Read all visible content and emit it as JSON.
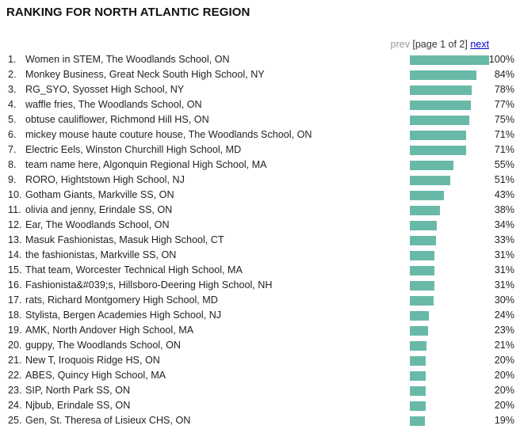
{
  "title": "RANKING FOR NORTH ATLANTIC REGION",
  "pager": {
    "prev": "prev",
    "info": "[page 1 of 2]",
    "next": "next"
  },
  "bar_color": "#69b9a9",
  "rankings": [
    {
      "rank": "1.",
      "name": "Women in STEM, The Woodlands School, ON",
      "pct": "100%",
      "value": 100
    },
    {
      "rank": "2.",
      "name": "Monkey Business, Great Neck South High School, NY",
      "pct": "84%",
      "value": 84
    },
    {
      "rank": "3.",
      "name": "RG_SYO, Syosset High School, NY",
      "pct": "78%",
      "value": 78
    },
    {
      "rank": "4.",
      "name": "waffle fries, The Woodlands School, ON",
      "pct": "77%",
      "value": 77
    },
    {
      "rank": "5.",
      "name": "obtuse cauliflower, Richmond Hill HS, ON",
      "pct": "75%",
      "value": 75
    },
    {
      "rank": "6.",
      "name": "mickey mouse haute couture house, The Woodlands School, ON",
      "pct": "71%",
      "value": 71
    },
    {
      "rank": "7.",
      "name": "Electric Eels, Winston Churchill High School, MD",
      "pct": "71%",
      "value": 71
    },
    {
      "rank": "8.",
      "name": "team name here, Algonquin Regional High School, MA",
      "pct": "55%",
      "value": 55
    },
    {
      "rank": "9.",
      "name": "RORO, Hightstown High School, NJ",
      "pct": "51%",
      "value": 51
    },
    {
      "rank": "10.",
      "name": "Gotham Giants, Markville SS, ON",
      "pct": "43%",
      "value": 43
    },
    {
      "rank": "11.",
      "name": "olivia and jenny, Erindale SS, ON",
      "pct": "38%",
      "value": 38
    },
    {
      "rank": "12.",
      "name": "Ear, The Woodlands School, ON",
      "pct": "34%",
      "value": 34
    },
    {
      "rank": "13.",
      "name": "Masuk Fashionistas, Masuk High School, CT",
      "pct": "33%",
      "value": 33
    },
    {
      "rank": "14.",
      "name": "the fashionistas, Markville SS, ON",
      "pct": "31%",
      "value": 31
    },
    {
      "rank": "15.",
      "name": "That team, Worcester Technical High School, MA",
      "pct": "31%",
      "value": 31
    },
    {
      "rank": "16.",
      "name": "Fashionista&#039;s, Hillsboro-Deering High School, NH",
      "pct": "31%",
      "value": 31
    },
    {
      "rank": "17.",
      "name": "rats, Richard Montgomery High School, MD",
      "pct": "30%",
      "value": 30
    },
    {
      "rank": "18.",
      "name": "Stylista, Bergen Academies High School, NJ",
      "pct": "24%",
      "value": 24
    },
    {
      "rank": "19.",
      "name": "AMK, North Andover High School, MA",
      "pct": "23%",
      "value": 23
    },
    {
      "rank": "20.",
      "name": "guppy, The Woodlands School, ON",
      "pct": "21%",
      "value": 21
    },
    {
      "rank": "21.",
      "name": "New T, Iroquois Ridge HS, ON",
      "pct": "20%",
      "value": 20
    },
    {
      "rank": "22.",
      "name": "ABES, Quincy High School, MA",
      "pct": "20%",
      "value": 20
    },
    {
      "rank": "23.",
      "name": "SIP, North Park SS, ON",
      "pct": "20%",
      "value": 20
    },
    {
      "rank": "24.",
      "name": "Njbub, Erindale SS, ON",
      "pct": "20%",
      "value": 20
    },
    {
      "rank": "25.",
      "name": "Gen, St. Theresa of Lisieux CHS, ON",
      "pct": "19%",
      "value": 19
    }
  ]
}
